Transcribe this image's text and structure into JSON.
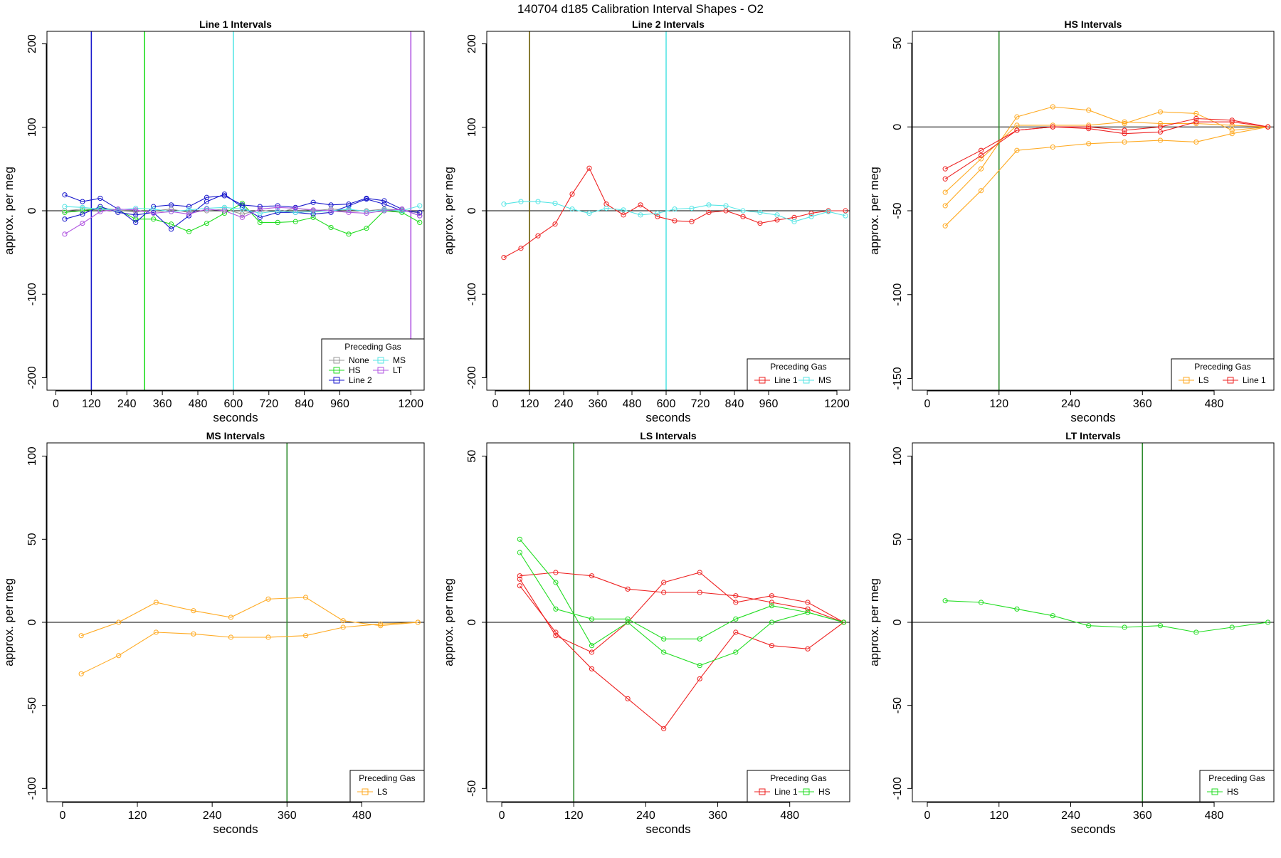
{
  "title": "140704   d185   Calibration Interval Shapes - O2",
  "colors": {
    "None": "#999999",
    "HS": "#22dd22",
    "Line 2": "#1a1acc",
    "MS": "#55e5e5",
    "LT": "#b055e0",
    "Line 1": "#ee2222",
    "LS": "#ffaa22",
    "refline": "#000000"
  },
  "chart_data": [
    {
      "type": "line",
      "title": "Line 1 Intervals",
      "xlabel": "seconds",
      "ylabel": "approx. per meg",
      "xlim": [
        -30,
        1245
      ],
      "ylim": [
        -215,
        215
      ],
      "xticks": [
        0,
        120,
        240,
        360,
        480,
        600,
        720,
        840,
        960,
        1200
      ],
      "yticks": [
        -200,
        -100,
        0,
        100,
        200
      ],
      "hline": 0,
      "vlines": [
        {
          "x": 120,
          "color": "Line 2"
        },
        {
          "x": 300,
          "color": "HS"
        },
        {
          "x": 600,
          "color": "MS"
        },
        {
          "x": 1200,
          "color": "LT"
        }
      ],
      "legend": {
        "title": "Preceding Gas",
        "entries": [
          "None",
          "HS",
          "Line 2",
          "MS",
          "LT"
        ],
        "columns": 2,
        "position": "bottom-right"
      },
      "series": [
        {
          "color": "None",
          "x": [
            30,
            90,
            150,
            210,
            270,
            330,
            390,
            450,
            510,
            570,
            630,
            690,
            750,
            810,
            870,
            930,
            990,
            1050,
            1110,
            1170,
            1230
          ],
          "values": [
            0,
            2,
            1,
            0,
            -1,
            0,
            2,
            -2,
            0,
            2,
            -4,
            1,
            -2,
            3,
            0,
            2,
            1,
            0,
            2,
            1,
            -3
          ]
        },
        {
          "color": "HS",
          "x": [
            30,
            90,
            150,
            210,
            270,
            330,
            390,
            450,
            510,
            570,
            630,
            690,
            750,
            810,
            870,
            930,
            990,
            1050,
            1110,
            1170,
            1230
          ],
          "values": [
            -2,
            0,
            3,
            1,
            -10,
            -10,
            -16,
            -25,
            -15,
            -3,
            9,
            -14,
            -14,
            -13,
            -8,
            -20,
            -28,
            -21,
            0,
            -2,
            -14
          ]
        },
        {
          "color": "Line 2",
          "x": [
            30,
            90,
            150,
            210,
            270,
            330,
            390,
            450,
            510,
            570,
            630,
            690,
            750,
            810,
            870,
            930,
            990,
            1050,
            1110,
            1170,
            1230
          ],
          "values": [
            19,
            11,
            15,
            2,
            -14,
            5,
            7,
            5,
            16,
            18,
            7,
            5,
            6,
            4,
            10,
            7,
            8,
            15,
            12,
            2,
            -6
          ]
        },
        {
          "color": "Line 2",
          "x": [
            30,
            90,
            150,
            210,
            270,
            330,
            390,
            450,
            510,
            570,
            630,
            690,
            750,
            810,
            870,
            930,
            990,
            1050,
            1110,
            1170,
            1230
          ],
          "values": [
            -10,
            -4,
            5,
            -2,
            -5,
            -2,
            -22,
            -6,
            11,
            20,
            4,
            -8,
            -2,
            -2,
            -4,
            -2,
            6,
            14,
            8,
            0,
            -2
          ]
        },
        {
          "color": "MS",
          "x": [
            30,
            90,
            150,
            210,
            270,
            330,
            390,
            450,
            510,
            570,
            630,
            690,
            750,
            810,
            870,
            930,
            990,
            1050,
            1110,
            1170,
            1230
          ],
          "values": [
            5,
            4,
            2,
            1,
            3,
            2,
            -1,
            1,
            3,
            4,
            2,
            -3,
            0,
            -2,
            -1,
            0,
            2,
            -1,
            1,
            0,
            6
          ]
        },
        {
          "color": "LT",
          "x": [
            30,
            90,
            150,
            210,
            270,
            330,
            390,
            450,
            510,
            570,
            630,
            690,
            750,
            810,
            870,
            930,
            990,
            1050,
            1110,
            1170,
            1230
          ],
          "values": [
            -28,
            -15,
            -1,
            2,
            1,
            -3,
            -1,
            -4,
            2,
            0,
            -8,
            2,
            4,
            3,
            1,
            0,
            -2,
            -3,
            0,
            2,
            -6
          ]
        }
      ]
    },
    {
      "type": "line",
      "title": "Line 2 Intervals",
      "xlabel": "seconds",
      "ylabel": "approx. per meg",
      "xlim": [
        -30,
        1245
      ],
      "ylim": [
        -215,
        215
      ],
      "xticks": [
        0,
        120,
        240,
        360,
        480,
        600,
        720,
        840,
        960,
        1200
      ],
      "yticks": [
        -200,
        -100,
        0,
        100,
        200
      ],
      "hline": 0,
      "vlines": [
        {
          "x": 120,
          "color": "#6b5a00"
        },
        {
          "x": 600,
          "color": "MS"
        }
      ],
      "legend": {
        "title": "Preceding Gas",
        "entries": [
          "Line 1",
          "MS"
        ],
        "columns": 2,
        "position": "bottom-right"
      },
      "series": [
        {
          "color": "Line 1",
          "x": [
            30,
            90,
            150,
            210,
            270,
            330,
            390,
            450,
            510,
            570,
            630,
            690,
            750,
            810,
            870,
            930,
            990,
            1050,
            1110,
            1170,
            1230
          ],
          "values": [
            -56,
            -45,
            -30,
            -16,
            20,
            51,
            8,
            -5,
            7,
            -7,
            -12,
            -13,
            -2,
            0,
            -7,
            -15,
            -11,
            -8,
            -3,
            0,
            0
          ]
        },
        {
          "color": "MS",
          "x": [
            30,
            90,
            150,
            210,
            270,
            330,
            390,
            450,
            510,
            570,
            630,
            690,
            750,
            810,
            870,
            930,
            990,
            1050,
            1110,
            1170,
            1230
          ],
          "values": [
            8,
            11,
            11,
            9,
            2,
            -3,
            3,
            1,
            -5,
            -3,
            2,
            3,
            7,
            6,
            0,
            -2,
            -5,
            -13,
            -7,
            -1,
            -6
          ]
        }
      ]
    },
    {
      "type": "line",
      "title": "HS Intervals",
      "xlabel": "seconds",
      "ylabel": "approx. per meg",
      "xlim": [
        -25,
        580
      ],
      "ylim": [
        -157,
        57
      ],
      "xticks": [
        0,
        120,
        240,
        360,
        480
      ],
      "yticks": [
        -150,
        -100,
        -50,
        0,
        50
      ],
      "hline": 0,
      "vlines": [
        {
          "x": 120,
          "color": "#2e8b2e"
        }
      ],
      "legend": {
        "title": "Preceding Gas",
        "entries": [
          "LS",
          "Line 1"
        ],
        "columns": 2,
        "position": "bottom-right"
      },
      "series": [
        {
          "color": "LS",
          "x": [
            30,
            90,
            150,
            210,
            270,
            330,
            390,
            450,
            510,
            570
          ],
          "values": [
            -59,
            -38,
            -14,
            -12,
            -10,
            -9,
            -8,
            -9,
            -4,
            0
          ]
        },
        {
          "color": "LS",
          "x": [
            30,
            90,
            150,
            210,
            270,
            330,
            390,
            450,
            510,
            570
          ],
          "values": [
            -47,
            -25,
            6,
            12,
            10,
            2,
            9,
            8,
            -2,
            0
          ]
        },
        {
          "color": "LS",
          "x": [
            30,
            90,
            150,
            210,
            270,
            330,
            390,
            450,
            510,
            570
          ],
          "values": [
            -39,
            -19,
            1,
            1,
            1,
            3,
            2,
            2,
            1,
            0
          ]
        },
        {
          "color": "Line 1",
          "x": [
            30,
            90,
            150,
            210,
            270,
            330,
            390,
            450,
            510,
            570
          ],
          "values": [
            -25,
            -14,
            -2,
            0,
            -1,
            -4,
            -3,
            3,
            3,
            0
          ]
        },
        {
          "color": "Line 1",
          "x": [
            30,
            90,
            150,
            210,
            270,
            330,
            390,
            450,
            510,
            570
          ],
          "values": [
            -31,
            -17,
            -2,
            0,
            0,
            -2,
            0,
            5,
            4,
            0
          ]
        }
      ]
    },
    {
      "type": "line",
      "title": "MS Intervals",
      "xlabel": "seconds",
      "ylabel": "approx. per meg",
      "xlim": [
        -25,
        580
      ],
      "ylim": [
        -108,
        108
      ],
      "xticks": [
        0,
        120,
        240,
        360,
        480
      ],
      "yticks": [
        -100,
        -50,
        0,
        50,
        100
      ],
      "hline": 0,
      "vlines": [
        {
          "x": 360,
          "color": "#2e8b2e"
        }
      ],
      "legend": {
        "title": "Preceding Gas",
        "entries": [
          "LS"
        ],
        "columns": 1,
        "position": "bottom-right"
      },
      "series": [
        {
          "color": "LS",
          "x": [
            30,
            90,
            150,
            210,
            270,
            330,
            390,
            450,
            510,
            570
          ],
          "values": [
            -8,
            0,
            12,
            7,
            3,
            14,
            15,
            1,
            -2,
            0
          ]
        },
        {
          "color": "LS",
          "x": [
            30,
            90,
            150,
            210,
            270,
            330,
            390,
            450,
            510,
            570
          ],
          "values": [
            -31,
            -20,
            -6,
            -7,
            -9,
            -9,
            -8,
            -3,
            -1,
            0
          ]
        }
      ]
    },
    {
      "type": "line",
      "title": "LS Intervals",
      "xlabel": "seconds",
      "ylabel": "approx. per meg",
      "xlim": [
        -25,
        580
      ],
      "ylim": [
        -54,
        54
      ],
      "xticks": [
        0,
        120,
        240,
        360,
        480
      ],
      "yticks": [
        -50,
        0,
        50
      ],
      "hline": 0,
      "vlines": [
        {
          "x": 120,
          "color": "#2e8b2e"
        }
      ],
      "legend": {
        "title": "Preceding Gas",
        "entries": [
          "Line 1",
          "HS"
        ],
        "columns": 2,
        "position": "bottom-right"
      },
      "series": [
        {
          "color": "Line 1",
          "x": [
            30,
            90,
            150,
            210,
            270,
            330,
            390,
            450,
            510,
            570
          ],
          "values": [
            14,
            15,
            14,
            10,
            9,
            9,
            8,
            6,
            4,
            0
          ]
        },
        {
          "color": "Line 1",
          "x": [
            30,
            90,
            150,
            210,
            270,
            330,
            390,
            450,
            510,
            570
          ],
          "values": [
            13,
            -4,
            -9,
            0,
            12,
            15,
            6,
            8,
            6,
            0
          ]
        },
        {
          "color": "Line 1",
          "x": [
            30,
            90,
            150,
            210,
            270,
            330,
            390,
            450,
            510,
            570
          ],
          "values": [
            11,
            -3,
            -14,
            -23,
            -32,
            -17,
            -3,
            -7,
            -8,
            0
          ]
        },
        {
          "color": "HS",
          "x": [
            30,
            90,
            150,
            210,
            270,
            330,
            390,
            450,
            510,
            570
          ],
          "values": [
            25,
            12,
            -7,
            0,
            -9,
            -13,
            -9,
            0,
            3,
            0
          ]
        },
        {
          "color": "HS",
          "x": [
            30,
            90,
            150,
            210,
            270,
            330,
            390,
            450,
            510,
            570
          ],
          "values": [
            21,
            4,
            1,
            1,
            -5,
            -5,
            1,
            5,
            3,
            0
          ]
        }
      ]
    },
    {
      "type": "line",
      "title": "LT Intervals",
      "xlabel": "seconds",
      "ylabel": "approx. per meg",
      "xlim": [
        -25,
        580
      ],
      "ylim": [
        -108,
        108
      ],
      "xticks": [
        0,
        120,
        240,
        360,
        480
      ],
      "yticks": [
        -100,
        -50,
        0,
        50,
        100
      ],
      "hline": 0,
      "vlines": [
        {
          "x": 360,
          "color": "#2e8b2e"
        }
      ],
      "legend": {
        "title": "Preceding Gas",
        "entries": [
          "HS"
        ],
        "columns": 1,
        "position": "bottom-right"
      },
      "series": [
        {
          "color": "HS",
          "x": [
            30,
            90,
            150,
            210,
            270,
            330,
            390,
            450,
            510,
            570
          ],
          "values": [
            13,
            12,
            8,
            4,
            -2,
            -3,
            -2,
            -6,
            -3,
            0
          ]
        }
      ]
    }
  ]
}
